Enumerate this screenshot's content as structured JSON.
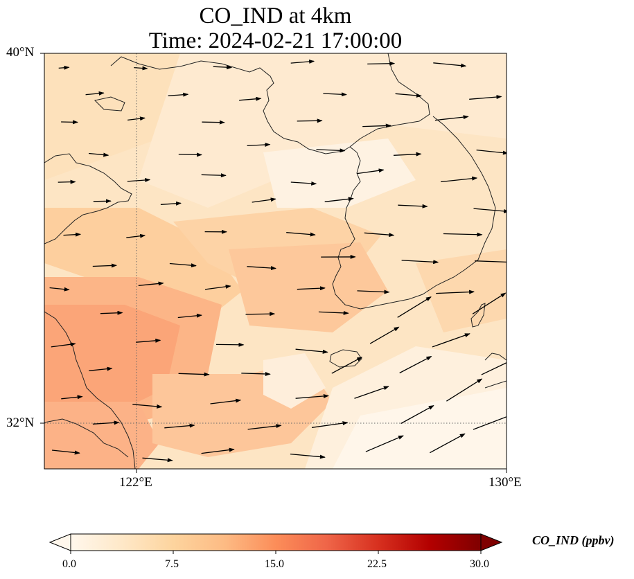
{
  "title_line1": "CO_IND at 4km",
  "title_line2": "Time: 2024-02-21 17:00:00",
  "axes": {
    "lat_ticks": [
      "40°N",
      "32°N"
    ],
    "lon_ticks": [
      "122°E",
      "130°E"
    ],
    "lat_range": [
      31,
      40
    ],
    "lon_range": [
      120,
      130
    ]
  },
  "colorbar": {
    "label": "CO_IND (ppbv)",
    "ticks": [
      "0.0",
      "7.5",
      "15.0",
      "22.5",
      "30.0"
    ],
    "range": [
      0,
      30
    ],
    "colormap": "OrRd",
    "extend": "both",
    "colors": [
      "#fff7ec",
      "#fee8c8",
      "#fdd49e",
      "#fdbb84",
      "#fc8d59",
      "#ef6548",
      "#d7301f",
      "#b30000",
      "#7f0000"
    ]
  },
  "map": {
    "gridlines": "dotted",
    "features": [
      "coastline"
    ],
    "wind_vectors": "shown"
  }
}
